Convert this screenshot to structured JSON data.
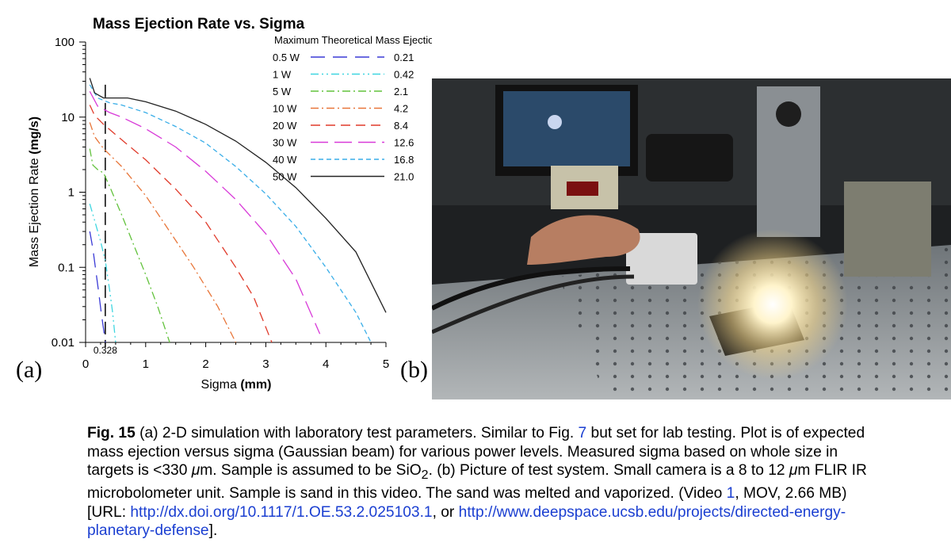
{
  "panel_labels": {
    "a": "(a)",
    "b": "(b)"
  },
  "chart_data": {
    "type": "line",
    "title": "Mass Ejection Rate vs. Sigma",
    "xlabel_plain": "Sigma ",
    "xlabel_bold": "(mm)",
    "ylabel_plain": "Mass Ejection Rate ",
    "ylabel_bold": "(mg/s)",
    "xlim": [
      0,
      5
    ],
    "ylim": [
      0.01,
      100
    ],
    "y_scale": "log",
    "x_ticks": [
      "0",
      "1",
      "2",
      "3",
      "4",
      "5"
    ],
    "y_ticks": [
      "100",
      "10",
      "1",
      "0.1",
      "0.01"
    ],
    "reference_line": {
      "x": 0.328,
      "label": "0.328"
    },
    "legend_title": "Maximum Theoretical Mass Ejection Rate (mg/s)",
    "legend_position": "top-right",
    "grid": false,
    "series": [
      {
        "name": "0.5 W",
        "max": "0.21",
        "color": "#3a3ad6",
        "dash": "18 10",
        "x": [
          0.07,
          0.12,
          0.17,
          0.22,
          0.26,
          0.3,
          0.33
        ],
        "y": [
          0.3,
          0.18,
          0.09,
          0.045,
          0.025,
          0.015,
          0.01
        ]
      },
      {
        "name": "1 W",
        "max": "0.42",
        "color": "#3fd6e0",
        "dash": "10 4 2 4 2 4",
        "x": [
          0.07,
          0.15,
          0.25,
          0.33,
          0.4,
          0.45,
          0.5
        ],
        "y": [
          0.7,
          0.42,
          0.22,
          0.12,
          0.05,
          0.025,
          0.01
        ]
      },
      {
        "name": "5 W",
        "max": "2.1",
        "color": "#62c23c",
        "dash": "10 4 2 4",
        "x": [
          0.07,
          0.12,
          0.2,
          0.3,
          0.4,
          0.6,
          0.8,
          1.0,
          1.2,
          1.4
        ],
        "y": [
          3.8,
          2.3,
          2.0,
          1.8,
          1.2,
          0.5,
          0.2,
          0.08,
          0.03,
          0.01
        ]
      },
      {
        "name": "10 W",
        "max": "4.2",
        "color": "#e8763a",
        "dash": "10 4 2 4",
        "x": [
          0.07,
          0.15,
          0.3,
          0.6,
          1.0,
          1.4,
          1.8,
          2.2,
          2.5
        ],
        "y": [
          8.5,
          5.5,
          3.8,
          2.2,
          0.9,
          0.3,
          0.1,
          0.03,
          0.01
        ]
      },
      {
        "name": "20 W",
        "max": "8.4",
        "color": "#e03a2a",
        "dash": "12 7",
        "x": [
          0.07,
          0.15,
          0.3,
          0.6,
          1.0,
          1.5,
          2.0,
          2.5,
          2.8,
          3.1
        ],
        "y": [
          14.5,
          10.5,
          8.0,
          5.0,
          2.7,
          1.1,
          0.4,
          0.1,
          0.04,
          0.01
        ]
      },
      {
        "name": "30 W",
        "max": "12.6",
        "color": "#d83ad8",
        "dash": "22 8",
        "x": [
          0.07,
          0.2,
          0.4,
          0.6,
          1.0,
          1.5,
          2.0,
          2.5,
          3.0,
          3.5,
          3.9
        ],
        "y": [
          22,
          14,
          11.5,
          10,
          7.0,
          4.0,
          1.9,
          0.8,
          0.28,
          0.07,
          0.013
        ]
      },
      {
        "name": "40 W",
        "max": "16.8",
        "color": "#3aaee8",
        "dash": "6 4",
        "x": [
          0.07,
          0.2,
          0.4,
          0.6,
          1.0,
          1.5,
          2.0,
          2.5,
          3.0,
          3.5,
          4.0,
          4.5,
          4.75
        ],
        "y": [
          27,
          18,
          15.5,
          14.5,
          11.5,
          7.5,
          4.5,
          2.2,
          0.95,
          0.35,
          0.1,
          0.025,
          0.01
        ]
      },
      {
        "name": "50 W",
        "max": "21.0",
        "color": "#222222",
        "dash": "",
        "x": [
          0.07,
          0.15,
          0.3,
          0.5,
          0.7,
          1.0,
          1.5,
          2.0,
          2.5,
          3.0,
          3.5,
          4.0,
          4.5,
          5.0
        ],
        "y": [
          33,
          21,
          18,
          18,
          18,
          16,
          12,
          8,
          4.8,
          2.5,
          1.15,
          0.45,
          0.16,
          0.025
        ]
      }
    ]
  },
  "caption": {
    "fig_label": "Fig. 15",
    "t1": "  (a) 2-D simulation with laboratory test parameters. Similar to Fig. ",
    "fig_ref": "7",
    "t2": " but set for lab testing. Plot is of expected mass ejection versus sigma (Gaussian beam) for various power levels. Measured sigma based on whole size in targets is <330 ",
    "mu1": "μ",
    "t3": "m. Sample is assumed to be SiO",
    "sub2": "2",
    "t4": ". (b) Picture of test system. Small camera is a 8 to 12 ",
    "mu2": "μ",
    "t5": "m FLIR IR microbolometer unit. Sample is sand in this video. The sand was melted and vaporized. (Video ",
    "video_ref": "1",
    "t6": ", MOV, 2.66 MB) [URL: ",
    "url1": "http://dx.doi.org/10.1117/1.OE.53.2.025103.1",
    "t7": ", or ",
    "url2": "http://www.deepspace.ucsb.edu/projects/directed-energy-planetary-defense",
    "t8": "]."
  },
  "photo": {
    "colors": {
      "table": "#9aa0a5",
      "light": "#fff6d8",
      "wall": "#1e2022"
    }
  }
}
